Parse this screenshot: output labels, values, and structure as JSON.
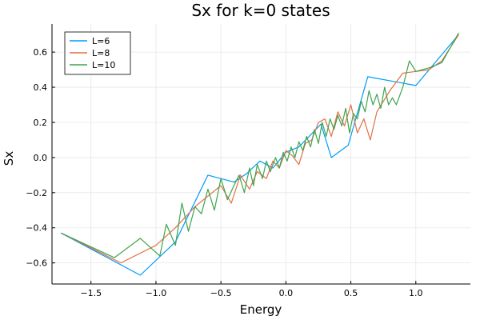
{
  "chart_data": {
    "type": "line",
    "title": "Sx for k=0 states",
    "xlabel": "Energy",
    "ylabel": "Sx",
    "xlim": [
      -1.8,
      1.42
    ],
    "ylim": [
      -0.72,
      0.76
    ],
    "xticks": [
      -1.5,
      -1.0,
      -0.5,
      0.0,
      0.5,
      1.0
    ],
    "xtick_labels": [
      "−1.5",
      "−1.0",
      "−0.5",
      "0.0",
      "0.5",
      "1.0"
    ],
    "yticks": [
      -0.6,
      -0.4,
      -0.2,
      0.0,
      0.2,
      0.4,
      0.6
    ],
    "ytick_labels": [
      "−0.6",
      "−0.4",
      "−0.2",
      "0.0",
      "0.2",
      "0.4",
      "0.6"
    ],
    "grid": true,
    "legend_position": "top-left",
    "series": [
      {
        "name": "L=6",
        "color": "#009af9",
        "x": [
          -1.73,
          -1.12,
          -0.85,
          -0.6,
          -0.4,
          -0.3,
          -0.2,
          -0.1,
          0.0,
          0.1,
          0.27,
          0.35,
          0.48,
          0.63,
          1.0,
          1.33
        ],
        "y": [
          -0.43,
          -0.67,
          -0.48,
          -0.1,
          -0.14,
          -0.09,
          -0.02,
          -0.06,
          0.03,
          0.06,
          0.19,
          0.0,
          0.07,
          0.46,
          0.41,
          0.7
        ]
      },
      {
        "name": "L=8",
        "color": "#e26f46",
        "x": [
          -1.73,
          -1.27,
          -1.0,
          -0.85,
          -0.7,
          -0.6,
          -0.5,
          -0.42,
          -0.35,
          -0.28,
          -0.22,
          -0.15,
          -0.1,
          -0.05,
          0.0,
          0.05,
          0.1,
          0.15,
          0.2,
          0.25,
          0.3,
          0.35,
          0.4,
          0.45,
          0.5,
          0.55,
          0.6,
          0.65,
          0.7,
          0.8,
          0.9,
          1.0,
          1.1,
          1.2,
          1.33
        ],
        "y": [
          -0.43,
          -0.6,
          -0.5,
          -0.4,
          -0.28,
          -0.22,
          -0.16,
          -0.26,
          -0.1,
          -0.18,
          -0.08,
          -0.12,
          -0.02,
          -0.06,
          0.04,
          0.01,
          -0.04,
          0.08,
          0.1,
          0.2,
          0.22,
          0.12,
          0.26,
          0.18,
          0.3,
          0.14,
          0.22,
          0.1,
          0.26,
          0.38,
          0.48,
          0.49,
          0.5,
          0.55,
          0.7
        ]
      },
      {
        "name": "L=10",
        "color": "#3ea44e",
        "x": [
          -1.73,
          -1.32,
          -1.12,
          -0.97,
          -0.92,
          -0.85,
          -0.8,
          -0.75,
          -0.7,
          -0.65,
          -0.6,
          -0.55,
          -0.5,
          -0.45,
          -0.4,
          -0.36,
          -0.32,
          -0.28,
          -0.25,
          -0.22,
          -0.18,
          -0.15,
          -0.12,
          -0.08,
          -0.05,
          -0.02,
          0.01,
          0.04,
          0.07,
          0.1,
          0.13,
          0.16,
          0.19,
          0.22,
          0.25,
          0.28,
          0.31,
          0.34,
          0.37,
          0.4,
          0.43,
          0.46,
          0.49,
          0.52,
          0.55,
          0.58,
          0.61,
          0.64,
          0.67,
          0.7,
          0.73,
          0.76,
          0.79,
          0.82,
          0.85,
          0.9,
          0.95,
          1.0,
          1.1,
          1.2,
          1.33
        ],
        "y": [
          -0.43,
          -0.57,
          -0.46,
          -0.56,
          -0.38,
          -0.5,
          -0.26,
          -0.42,
          -0.28,
          -0.32,
          -0.18,
          -0.3,
          -0.12,
          -0.24,
          -0.16,
          -0.1,
          -0.2,
          -0.06,
          -0.16,
          -0.04,
          -0.12,
          -0.02,
          -0.08,
          0.0,
          -0.06,
          0.03,
          -0.02,
          0.06,
          0.0,
          0.09,
          0.04,
          0.12,
          0.06,
          0.16,
          0.08,
          0.2,
          0.12,
          0.22,
          0.16,
          0.24,
          0.18,
          0.28,
          0.14,
          0.25,
          0.22,
          0.32,
          0.26,
          0.38,
          0.3,
          0.36,
          0.28,
          0.4,
          0.3,
          0.34,
          0.3,
          0.4,
          0.55,
          0.49,
          0.51,
          0.54,
          0.71
        ]
      }
    ]
  }
}
